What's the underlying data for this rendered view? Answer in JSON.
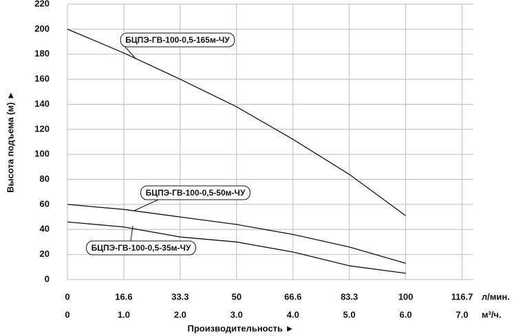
{
  "chart_data": {
    "type": "line",
    "y_label": "Высота подъема (м) ►",
    "x_label": "Производительность ►",
    "x_unit": "м³/ч.",
    "x2_unit": "л/мин.",
    "x": [
      0,
      1,
      2,
      3,
      4,
      5,
      6
    ],
    "series": [
      {
        "name": "БЦПЭ-ГВ-100-0,5-165м-ЧУ",
        "color": "#111111",
        "values": [
          200,
          181,
          160,
          138,
          112,
          84,
          51
        ]
      },
      {
        "name": "БЦПЭ-ГВ-100-0,5-50м-ЧУ",
        "color": "#111111",
        "values": [
          60,
          56,
          50,
          44,
          36,
          26,
          13
        ]
      },
      {
        "name": "БЦПЭ-ГВ-100-0,5-35м-ЧУ",
        "color": "#111111",
        "values": [
          46,
          42,
          34,
          30,
          22,
          11,
          5
        ]
      }
    ],
    "xlim": [
      0,
      7.2
    ],
    "ylim": [
      0,
      220
    ],
    "yticks": [
      0,
      20,
      40,
      60,
      80,
      100,
      120,
      140,
      160,
      180,
      200,
      220
    ],
    "xticks": [
      0,
      {
        "value": 1,
        "label": "1.0"
      },
      {
        "value": 2,
        "label": "2.0"
      },
      {
        "value": 3,
        "label": "3.0"
      },
      {
        "value": 4,
        "label": "4.0"
      },
      {
        "value": 5,
        "label": "5.0"
      },
      {
        "value": 6,
        "label": "6.0"
      },
      {
        "value": 7,
        "label": "7.0"
      }
    ],
    "x2ticks": [
      {
        "value": 0,
        "label": "0"
      },
      {
        "value": 1,
        "label": "16.6"
      },
      {
        "value": 2,
        "label": "33.3"
      },
      {
        "value": 3,
        "label": "50"
      },
      {
        "value": 4,
        "label": "66.6"
      },
      {
        "value": 5,
        "label": "83.3"
      },
      {
        "value": 6,
        "label": "100"
      },
      {
        "value": 7,
        "label": "116.7"
      }
    ],
    "grid": true
  }
}
